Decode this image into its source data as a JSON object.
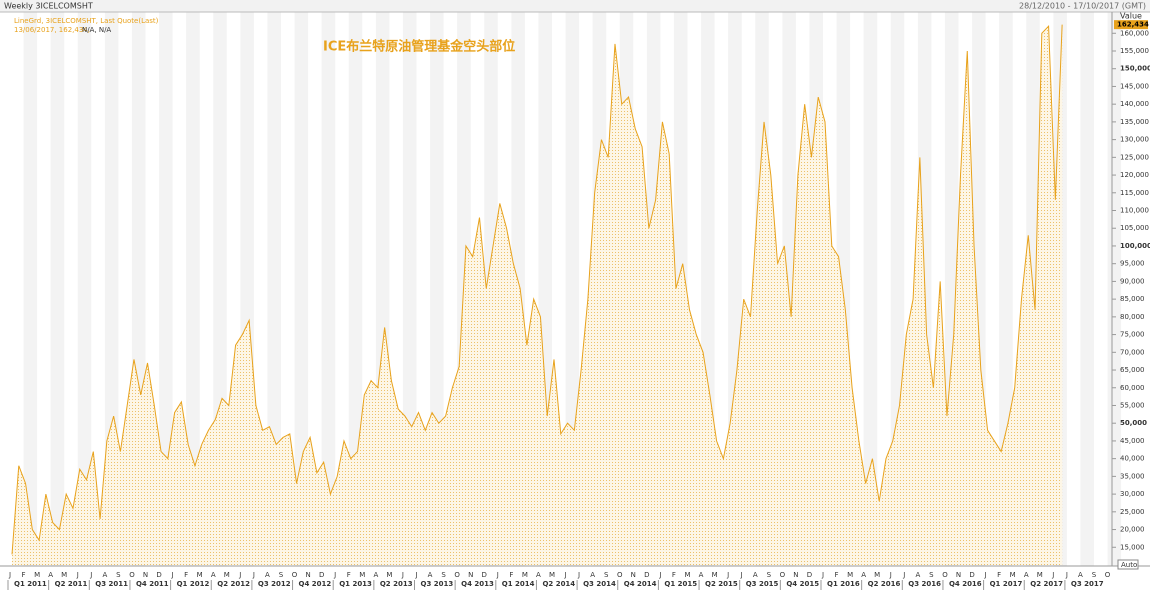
{
  "chart_data": {
    "type": "area",
    "window_title": "Weekly 3ICELCOMSHT",
    "date_range": "28/12/2010 - 17/10/2017 (GMT)",
    "legend_line": "LineGrd, 3ICELCOMSHT, Last Quote(Last)",
    "legend_quote": "13/06/2017, 162,434,",
    "legend_na": "N/A, N/A",
    "title": "ICE布兰特原油管理基金空头部位",
    "axis_title": "Value",
    "scale_mode": "Auto",
    "color": "#e8a21c",
    "values": [
      13000,
      38000,
      33000,
      20000,
      17000,
      30000,
      22000,
      20000,
      30000,
      26000,
      37000,
      34000,
      42000,
      23000,
      45000,
      52000,
      42000,
      55000,
      68000,
      58000,
      67000,
      55000,
      42000,
      40000,
      53000,
      56000,
      44000,
      38000,
      44000,
      48000,
      51000,
      57000,
      55000,
      72000,
      75000,
      79000,
      55000,
      48000,
      49000,
      44000,
      46000,
      47000,
      33000,
      42000,
      46000,
      36000,
      39000,
      30000,
      35000,
      45000,
      40000,
      42000,
      58000,
      62000,
      60000,
      77000,
      62000,
      54000,
      52000,
      49000,
      53000,
      48000,
      53000,
      50000,
      52000,
      60000,
      66000,
      100000,
      97000,
      108000,
      88000,
      100000,
      112000,
      105000,
      95000,
      88000,
      72000,
      85000,
      80000,
      52000,
      68000,
      47000,
      50000,
      48000,
      65000,
      85000,
      115000,
      130000,
      125000,
      157000,
      140000,
      142000,
      133000,
      128000,
      105000,
      113000,
      135000,
      126000,
      88000,
      95000,
      82000,
      75000,
      70000,
      58000,
      45000,
      40000,
      50000,
      65000,
      85000,
      80000,
      110000,
      135000,
      120000,
      95000,
      100000,
      80000,
      120000,
      140000,
      125000,
      142000,
      135000,
      100000,
      97000,
      82000,
      60000,
      45000,
      33000,
      40000,
      28000,
      40000,
      45000,
      55000,
      75000,
      85000,
      125000,
      75000,
      60000,
      90000,
      52000,
      75000,
      120000,
      155000,
      100000,
      65000,
      48000,
      45000,
      42000,
      50000,
      60000,
      85000,
      103000,
      82000,
      160000,
      162000,
      113000,
      162434
    ],
    "last_tick": {
      "value": 162434,
      "label": "162,434"
    },
    "ylim": [
      10000,
      166000
    ],
    "yticks": [
      {
        "value": 15000,
        "label": "15,000"
      },
      {
        "value": 20000,
        "label": "20,000"
      },
      {
        "value": 25000,
        "label": "25,000"
      },
      {
        "value": 30000,
        "label": "30,000"
      },
      {
        "value": 35000,
        "label": "35,000"
      },
      {
        "value": 40000,
        "label": "40,000"
      },
      {
        "value": 45000,
        "label": "45,000"
      },
      {
        "value": 50000,
        "label": "50,000"
      },
      {
        "value": 55000,
        "label": "55,000"
      },
      {
        "value": 60000,
        "label": "60,000"
      },
      {
        "value": 65000,
        "label": "65,000"
      },
      {
        "value": 70000,
        "label": "70,000"
      },
      {
        "value": 75000,
        "label": "75,000"
      },
      {
        "value": 80000,
        "label": "80,000"
      },
      {
        "value": 85000,
        "label": "85,000"
      },
      {
        "value": 90000,
        "label": "90,000"
      },
      {
        "value": 95000,
        "label": "95,000"
      },
      {
        "value": 100000,
        "label": "100,000"
      },
      {
        "value": 105000,
        "label": "105,000"
      },
      {
        "value": 110000,
        "label": "110,000"
      },
      {
        "value": 115000,
        "label": "115,000"
      },
      {
        "value": 120000,
        "label": "120,000"
      },
      {
        "value": 125000,
        "label": "125,000"
      },
      {
        "value": 130000,
        "label": "130,000"
      },
      {
        "value": 135000,
        "label": "135,000"
      },
      {
        "value": 140000,
        "label": "140,000"
      },
      {
        "value": 145000,
        "label": "145,000"
      },
      {
        "value": 150000,
        "label": "150,000"
      },
      {
        "value": 155000,
        "label": "155,000"
      },
      {
        "value": 160000,
        "label": "160,000"
      }
    ],
    "month_labels": [
      "J",
      "F",
      "M",
      "A",
      "M",
      "J",
      "J",
      "A",
      "S",
      "O",
      "N",
      "D",
      "J",
      "F",
      "M",
      "A",
      "M",
      "J",
      "J",
      "A",
      "S",
      "O",
      "N",
      "D",
      "J",
      "F",
      "M",
      "A",
      "M",
      "J",
      "J",
      "A",
      "S",
      "O",
      "N",
      "D",
      "J",
      "F",
      "M",
      "A",
      "M",
      "J",
      "J",
      "A",
      "S",
      "O",
      "N",
      "D",
      "J",
      "F",
      "M",
      "A",
      "M",
      "J",
      "J",
      "A",
      "S",
      "O",
      "N",
      "D",
      "J",
      "F",
      "M",
      "A",
      "M",
      "J",
      "J",
      "A",
      "S",
      "O",
      "N",
      "D",
      "J",
      "F",
      "M",
      "A",
      "M",
      "J",
      "J",
      "A",
      "S",
      "O"
    ],
    "quarter_labels": [
      "Q1 2011",
      "Q2 2011",
      "Q3 2011",
      "Q4 2011",
      "Q1 2012",
      "Q2 2012",
      "Q3 2012",
      "Q4 2012",
      "Q1 2013",
      "Q2 2013",
      "Q3 2013",
      "Q4 2013",
      "Q1 2014",
      "Q2 2014",
      "Q3 2014",
      "Q4 2014",
      "Q1 2015",
      "Q2 2015",
      "Q3 2015",
      "Q4 2015",
      "Q1 2016",
      "Q2 2016",
      "Q3 2016",
      "Q4 2016",
      "Q1 2017",
      "Q2 2017",
      "Q3 2017"
    ]
  }
}
